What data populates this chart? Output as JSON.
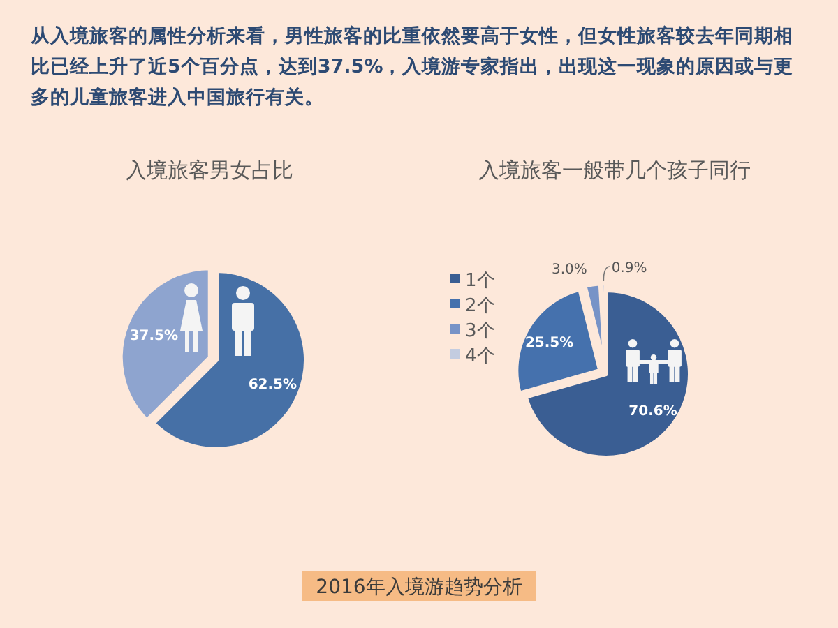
{
  "chart_data": [
    {
      "type": "pie",
      "title": "入境旅客男女占比",
      "categories": [
        null,
        null
      ],
      "values": [
        62.5,
        37.5
      ],
      "colors": [
        "#4670a6",
        "#8ea4cf"
      ],
      "value_labels": [
        "62.5%",
        "37.5%"
      ],
      "annotations": [
        "从入境旅客的属性分析来看，男性旅客的比重依然要高于女性，但女性旅客较去年同期相比已经上升了近5个百分点，达到37.5%，入境游专家指出，出现这一现象的原因或与更多的儿童旅客进入中国旅行有关。"
      ]
    },
    {
      "type": "pie",
      "title": "入境旅客一般带几个孩子同行",
      "categories": [
        "1个",
        "2个",
        "3个",
        "4个"
      ],
      "values": [
        70.6,
        25.5,
        3.0,
        0.9
      ],
      "colors": [
        "#3a5e93",
        "#4571ad",
        "#7793c7",
        "#c3cce0"
      ],
      "value_labels": [
        "70.6%",
        "25.5%",
        "3.0%",
        "0.9%"
      ],
      "legend": "left",
      "annotations": [
        "2016年入境游趋势分析"
      ]
    }
  ]
}
